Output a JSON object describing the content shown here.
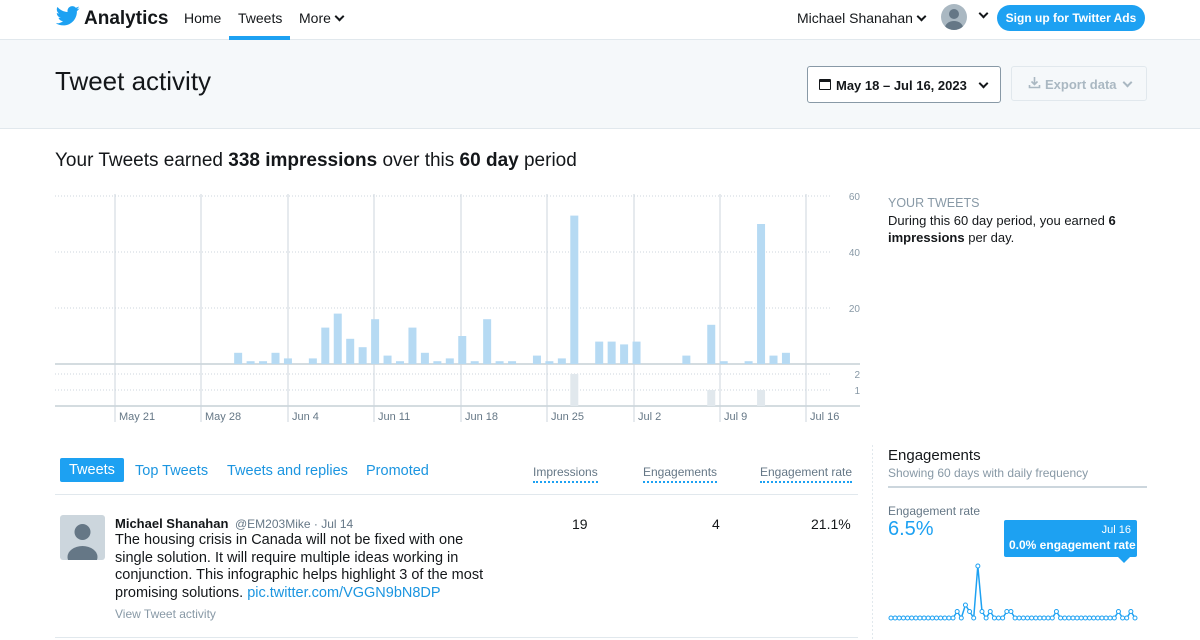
{
  "nav": {
    "brand": "Analytics",
    "items": [
      {
        "label": "Home"
      },
      {
        "label": "Tweets"
      },
      {
        "label": "More"
      }
    ],
    "user": "Michael Shanahan",
    "ads_button": "Sign up for Twitter Ads",
    "accent": "#1da1f2"
  },
  "header": {
    "title": "Tweet activity",
    "date_range": "May 18 – Jul 16, 2023",
    "export": "Export data"
  },
  "summary": {
    "prefix": "Your Tweets earned",
    "impressions": "338 impressions",
    "middle": "over this",
    "period": "60 day",
    "suffix": "period"
  },
  "side_note": {
    "heading": "YOUR TWEETS",
    "text_before": "During this 60 day period, you earned",
    "bold_value": "6 impressions",
    "text_after": "per day."
  },
  "chart_data": {
    "type": "bar",
    "x_tick_labels": [
      "May 21",
      "May 28",
      "Jun 4",
      "Jun 11",
      "Jun 18",
      "Jun 25",
      "Jul 2",
      "Jul 9",
      "Jul 16"
    ],
    "top_panel": {
      "ylim": [
        0,
        60
      ],
      "y_ticks": [
        60,
        40,
        20
      ],
      "values": [
        0,
        0,
        0,
        0,
        0,
        0,
        0,
        4,
        1,
        1,
        4,
        2,
        0,
        2,
        13,
        18,
        9,
        6,
        16,
        3,
        1,
        13,
        4,
        1,
        2,
        10,
        1,
        16,
        1,
        1,
        0,
        3,
        1,
        2,
        53,
        0,
        8,
        8,
        7,
        8,
        0,
        0,
        0,
        3,
        0,
        14,
        1,
        0,
        1,
        50,
        3,
        4
      ]
    },
    "bottom_panel": {
      "ylim": [
        0,
        2
      ],
      "y_ticks": [
        2,
        1
      ],
      "values": [
        0,
        0,
        0,
        0,
        0,
        0,
        0,
        0,
        0,
        0,
        0,
        0,
        0,
        0,
        0,
        0,
        0,
        0,
        0,
        0,
        0,
        0,
        0,
        0,
        0,
        0,
        0,
        0,
        0,
        0,
        0,
        0,
        0,
        0,
        2,
        0,
        0,
        0,
        0,
        0,
        0,
        0,
        0,
        0,
        0,
        1,
        0,
        0,
        0,
        1,
        0,
        0
      ]
    },
    "grid": true
  },
  "tabs": [
    {
      "label": "Tweets"
    },
    {
      "label": "Top Tweets"
    },
    {
      "label": "Tweets and replies"
    },
    {
      "label": "Promoted"
    }
  ],
  "columns": [
    "Impressions",
    "Engagements",
    "Engagement rate"
  ],
  "tweet": {
    "author": "Michael Shanahan",
    "meta": "@EM203Mike · Jul 14",
    "text": "The housing crisis in Canada will not be fixed with one single solution. It will require multiple ideas working in conjunction. This infographic helps highlight 3 of the most promising solutions.",
    "link": "pic.twitter.com/VGGN9bN8DP",
    "activity": "View Tweet activity",
    "impressions": "19",
    "engagements": "4",
    "rate": "21.1%"
  },
  "engagements": {
    "title": "Engagements",
    "subtitle": "Showing 60 days with daily frequency",
    "label": "Engagement rate",
    "rate": "6.5%",
    "tooltip_date": "Jul 16",
    "tooltip_value": "0.0% engagement rate",
    "spark_values": [
      0,
      0,
      0,
      0,
      0,
      0,
      0,
      0,
      0,
      0,
      0,
      0,
      0,
      0,
      0,
      0,
      1,
      0,
      2,
      1,
      0,
      8,
      1,
      0,
      1,
      0,
      0,
      0,
      1,
      1,
      0,
      0,
      0,
      0,
      0,
      0,
      0,
      0,
      0,
      0,
      1,
      0,
      0,
      0,
      0,
      0,
      0,
      0,
      0,
      0,
      0,
      0,
      0,
      0,
      0,
      1,
      0,
      0,
      1,
      0
    ]
  }
}
